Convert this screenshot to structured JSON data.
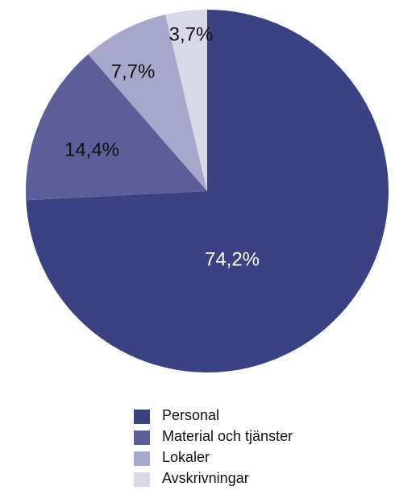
{
  "chart_data": {
    "type": "pie",
    "categories": [
      "Personal",
      "Material och tjänster",
      "Lokaler",
      "Avskrivningar"
    ],
    "values": [
      74.2,
      14.4,
      7.7,
      3.7
    ],
    "labels": [
      "74,2%",
      "14,4%",
      "7,7%",
      "3,7%"
    ],
    "colors": [
      "#3a4284",
      "#5d5d99",
      "#a7a7cb",
      "#d8d8e9"
    ],
    "label_colors": [
      "#ffffff",
      "#111111",
      "#111111",
      "#111111"
    ],
    "start": "12 o'clock",
    "direction": "clockwise",
    "legend_position": "bottom"
  }
}
